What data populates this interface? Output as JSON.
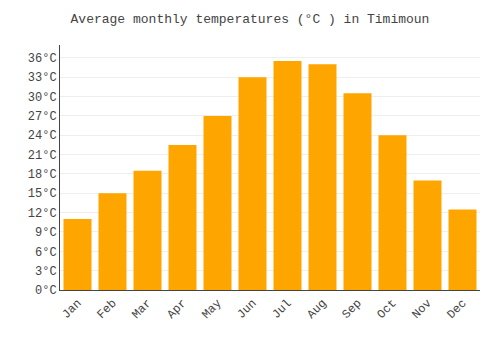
{
  "chart_data": {
    "type": "bar",
    "title": "Average monthly temperatures (°C ) in Timimoun",
    "categories": [
      "Jan",
      "Feb",
      "Mar",
      "Apr",
      "May",
      "Jun",
      "Jul",
      "Aug",
      "Sep",
      "Oct",
      "Nov",
      "Dec"
    ],
    "values": [
      11.0,
      15.0,
      18.5,
      22.5,
      27.0,
      33.0,
      35.5,
      35.0,
      30.5,
      24.0,
      17.0,
      12.5
    ],
    "color": "#FFA500",
    "ylim": [
      0,
      38
    ],
    "yticks": [
      {
        "value": 0,
        "label": "0°C"
      },
      {
        "value": 3,
        "label": "3°C"
      },
      {
        "value": 6,
        "label": "6°C"
      },
      {
        "value": 9,
        "label": "9°C"
      },
      {
        "value": 12,
        "label": "12°C"
      },
      {
        "value": 15,
        "label": "15°C"
      },
      {
        "value": 18,
        "label": "18°C"
      },
      {
        "value": 21,
        "label": "21°C"
      },
      {
        "value": 24,
        "label": "24°C"
      },
      {
        "value": 27,
        "label": "27°C"
      },
      {
        "value": 30,
        "label": "30°C"
      },
      {
        "value": 33,
        "label": "33°C"
      },
      {
        "value": 36,
        "label": "36°C"
      }
    ],
    "grid": true
  }
}
